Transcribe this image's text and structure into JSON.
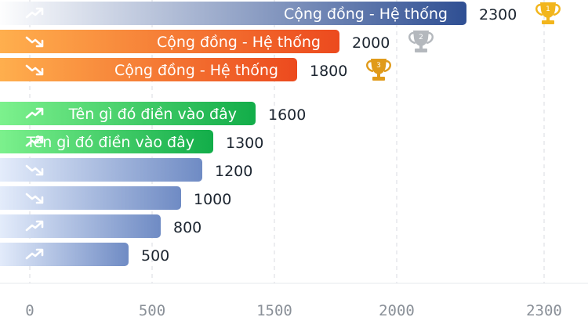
{
  "chart_data": {
    "type": "bar",
    "orientation": "horizontal",
    "grid": true,
    "x_ticks": [
      0,
      500,
      1500,
      2000,
      2300
    ],
    "x_range": [
      0,
      2300
    ],
    "groups": [
      {
        "name": "",
        "bars": [
          {
            "label": "Cộng đồng - Hệ thống",
            "value": 2300,
            "trend": "up",
            "award": "gold",
            "award_text": "1",
            "color_start": "#ffffff",
            "color_end": "#2f4f93"
          },
          {
            "label": "Cộng đồng - Hệ thống",
            "value": 2000,
            "trend": "down",
            "award": "silver",
            "award_text": "2",
            "color_start": "#ffb04e",
            "color_end": "#ec4a1e"
          },
          {
            "label": "Cộng đồng - Hệ thống",
            "value": 1800,
            "trend": "down",
            "award": "bronze",
            "award_text": "3",
            "color_start": "#ffb04e",
            "color_end": "#ec4a1e"
          }
        ]
      },
      {
        "name": "",
        "bars": [
          {
            "label": "Tên gì đó điền vào đây",
            "value": 1600,
            "trend": "up",
            "color_start": "#7ef28e",
            "color_end": "#12ad49"
          },
          {
            "label": "Tên gì đó điền vào đây",
            "value": 1300,
            "trend": "up",
            "color_start": "#7ef28e",
            "color_end": "#12ad49"
          },
          {
            "label": "",
            "value": 1200,
            "trend": "down",
            "color_start": "#e6eefc",
            "color_end": "#6f8bc4"
          },
          {
            "label": "",
            "value": 1000,
            "trend": "down",
            "color_start": "#e6eefc",
            "color_end": "#6f8bc4"
          },
          {
            "label": "",
            "value": 800,
            "trend": "up",
            "color_start": "#e6eefc",
            "color_end": "#6f8bc4"
          },
          {
            "label": "",
            "value": 500,
            "trend": "up",
            "color_start": "#e6eefc",
            "color_end": "#6f8bc4"
          }
        ]
      }
    ]
  },
  "colors": {
    "grid": "#d8dbe0",
    "axis_line": "#e6e8ec",
    "gold": "#f2b51c",
    "silver": "#b4b8bd",
    "bronze": "#e09a1a"
  },
  "icons": {
    "trend_up": "trend-up-icon",
    "trend_down": "trend-down-icon",
    "award": "trophy-icon"
  }
}
